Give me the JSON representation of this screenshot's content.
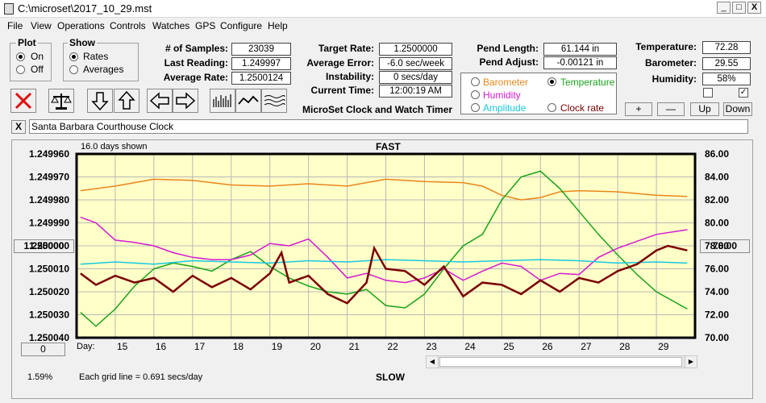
{
  "window": {
    "title": "C:\\microset\\2017_10_29.mst"
  },
  "menu": [
    "File",
    "View",
    "Operations",
    "Controls",
    "Watches",
    "GPS",
    "Configure",
    "Help"
  ],
  "plot_group": {
    "title": "Plot",
    "on": "On",
    "off": "Off",
    "selected": "On"
  },
  "show_group": {
    "title": "Show",
    "rates": "Rates",
    "averages": "Averages",
    "selected": "Rates"
  },
  "stats": {
    "samples_label": "# of Samples:",
    "samples": "23039",
    "last_label": "Last Reading:",
    "last": "1.249997",
    "avg_label": "Average Rate:",
    "avg": "1.2500124",
    "target_label": "Target Rate:",
    "target": "1.2500000",
    "avgerr_label": "Average Error:",
    "avgerr": "-6.0 sec/week",
    "instab_label": "Instability:",
    "instab": "0 secs/day",
    "time_label": "Current Time:",
    "time": "12:00:19 AM",
    "pendlen_label": "Pend Length:",
    "pendlen": "61.144 in",
    "pendadj_label": "Pend Adjust:",
    "pendadj": "-0.00121 in",
    "temp_label": "Temperature:",
    "temp": "72.28",
    "baro_label": "Barometer:",
    "baro": "29.55",
    "hum_label": "Humidity:",
    "hum": "58%"
  },
  "app_caption": "MicroSet Clock and Watch Timer",
  "sensor_select": {
    "options": [
      {
        "label": "Barometer",
        "color": "#e8861c"
      },
      {
        "label": "Temperature",
        "color": "#1aa21a",
        "selected": true
      },
      {
        "label": "Humidity",
        "color": "#d21ad2"
      },
      {
        "label": "Amplitude",
        "color": "#18c8e0"
      },
      {
        "label": "Clock rate",
        "color": "#7a0000"
      }
    ],
    "buttons": [
      "+",
      "—",
      "Up",
      "Down"
    ]
  },
  "clock_name": "Santa Barbara Courthouse Clock",
  "close_label": "X",
  "plot": {
    "days_shown": "16.0 days shown",
    "fast": "FAST",
    "slow": "SLOW",
    "day_label": "Day:",
    "grid_note": "Each grid line = 0.691 secs/day",
    "percent": "1.59%",
    "left_button": "1.250000",
    "right_button": "78.00",
    "zero_button": "0",
    "bg_color": "#ffffc8"
  },
  "chart_data": {
    "type": "line",
    "x_ticks": [
      15,
      16,
      17,
      18,
      19,
      20,
      21,
      22,
      23,
      24,
      25,
      26,
      27,
      28,
      29
    ],
    "y_left_ticks": [
      "1.249960",
      "1.249970",
      "1.249980",
      "1.249990",
      "1.250000",
      "1.250010",
      "1.250020",
      "1.250030",
      "1.250040"
    ],
    "y_right_ticks": [
      "86.00",
      "84.00",
      "82.00",
      "80.00",
      "78.00",
      "76.00",
      "74.00",
      "72.00",
      "70.00"
    ],
    "ylim_left": [
      1.24996,
      1.25004
    ],
    "ylim_right": [
      70,
      86
    ],
    "xlim": [
      14,
      30
    ],
    "series": [
      {
        "name": "Barometer",
        "color": "#e8861c",
        "axis": "right",
        "x": [
          14.1,
          15,
          16,
          17,
          18,
          19,
          20,
          21,
          22,
          23,
          24,
          24.5,
          25,
          25.5,
          26,
          26.5,
          27,
          28,
          29,
          29.8
        ],
        "y": [
          82.8,
          83.2,
          83.8,
          83.7,
          83.3,
          83.2,
          83.4,
          83.2,
          83.8,
          83.6,
          83.5,
          83.2,
          82.4,
          82.0,
          82.2,
          82.7,
          82.8,
          82.7,
          82.4,
          82.3
        ]
      },
      {
        "name": "Temperature",
        "color": "#1aa21a",
        "axis": "right",
        "x": [
          14.1,
          14.5,
          15,
          15.5,
          16,
          16.5,
          17,
          17.5,
          18,
          18.5,
          19,
          19.5,
          20,
          20.5,
          21,
          21.5,
          22,
          22.5,
          23,
          23.5,
          24,
          24.5,
          25,
          25.5,
          26,
          26.5,
          27,
          27.5,
          28,
          28.5,
          29,
          29.8
        ],
        "y": [
          72.2,
          71.0,
          72.5,
          74.5,
          76.0,
          76.5,
          76.2,
          75.8,
          76.8,
          77.5,
          76.2,
          75.2,
          74.5,
          74.0,
          73.8,
          74.2,
          72.8,
          72.6,
          73.8,
          76.0,
          78.0,
          79.0,
          82.0,
          84.0,
          84.5,
          83.0,
          81.0,
          79.0,
          77.2,
          75.5,
          74.0,
          72.5
        ]
      },
      {
        "name": "Humidity",
        "color": "#d21ad2",
        "axis": "right",
        "x": [
          14.1,
          14.5,
          15,
          15.5,
          16,
          16.5,
          17,
          17.5,
          18,
          18.5,
          19,
          19.5,
          20,
          20.5,
          21,
          21.5,
          22,
          22.5,
          23,
          23.5,
          24,
          24.5,
          25,
          25.5,
          26,
          26.5,
          27,
          27.5,
          28,
          28.5,
          29,
          29.8
        ],
        "y": [
          80.5,
          80.0,
          78.5,
          78.3,
          78.0,
          77.4,
          77.0,
          76.8,
          76.8,
          77.2,
          78.2,
          78.0,
          78.6,
          77.0,
          75.2,
          75.6,
          75.0,
          74.8,
          75.2,
          76.0,
          75.0,
          75.8,
          76.5,
          76.2,
          75.0,
          75.6,
          75.5,
          77.0,
          77.8,
          78.4,
          79.0,
          79.4
        ]
      },
      {
        "name": "Amplitude",
        "color": "#18c8e0",
        "axis": "right",
        "x": [
          14.1,
          15,
          16,
          17,
          18,
          19,
          20,
          21,
          22,
          23,
          24,
          25,
          26,
          27,
          28,
          29,
          29.8
        ],
        "y": [
          76.4,
          76.6,
          76.4,
          76.7,
          76.6,
          76.5,
          76.7,
          76.6,
          76.8,
          76.7,
          76.6,
          76.7,
          76.8,
          76.7,
          76.5,
          76.6,
          76.5
        ]
      },
      {
        "name": "Clock rate",
        "color": "#7a0000",
        "axis": "left",
        "x": [
          14.1,
          14.5,
          15,
          15.5,
          16,
          16.5,
          17,
          17.5,
          18,
          18.5,
          19,
          19.3,
          19.5,
          20,
          20.5,
          21,
          21.5,
          21.7,
          22,
          22.5,
          23,
          23.5,
          24,
          24.5,
          25,
          25.5,
          26,
          26.5,
          27,
          27.5,
          28,
          28.5,
          29,
          29.3,
          29.8
        ],
        "y": [
          1.250012,
          1.250017,
          1.250013,
          1.250016,
          1.250014,
          1.25002,
          1.250013,
          1.250018,
          1.250014,
          1.250019,
          1.250012,
          1.250003,
          1.250016,
          1.250013,
          1.250021,
          1.250025,
          1.250016,
          1.250001,
          1.25001,
          1.250011,
          1.250017,
          1.250009,
          1.250022,
          1.250016,
          1.250017,
          1.250021,
          1.250015,
          1.25002,
          1.250014,
          1.250016,
          1.250011,
          1.250008,
          1.250002,
          1.25,
          1.250002
        ]
      }
    ]
  }
}
